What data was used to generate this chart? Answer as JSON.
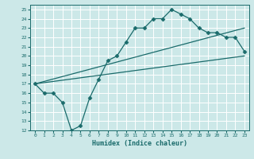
{
  "title": "",
  "xlabel": "Humidex (Indice chaleur)",
  "ylabel": "",
  "bg_color": "#cce8e8",
  "grid_color": "#ffffff",
  "line_color": "#1a6b6b",
  "ylim": [
    12,
    25.5
  ],
  "xlim": [
    -0.5,
    23.5
  ],
  "yticks": [
    12,
    13,
    14,
    15,
    16,
    17,
    18,
    19,
    20,
    21,
    22,
    23,
    24,
    25
  ],
  "xticks": [
    0,
    1,
    2,
    3,
    4,
    5,
    6,
    7,
    8,
    9,
    10,
    11,
    12,
    13,
    14,
    15,
    16,
    17,
    18,
    19,
    20,
    21,
    22,
    23
  ],
  "line1_x": [
    0,
    1,
    2,
    3,
    4,
    5,
    6,
    7,
    8,
    9,
    10,
    11,
    12,
    13,
    14,
    15,
    16,
    17,
    18,
    19,
    20,
    21,
    22,
    23
  ],
  "line1_y": [
    17,
    16,
    16,
    15,
    12,
    12.5,
    15.5,
    17.5,
    19.5,
    20,
    21.5,
    23,
    23,
    24,
    24,
    25,
    24.5,
    24,
    23,
    22.5,
    22.5,
    22,
    22,
    20.5
  ],
  "line2_x": [
    0,
    23
  ],
  "line2_y": [
    17,
    20
  ],
  "line3_x": [
    0,
    23
  ],
  "line3_y": [
    17,
    23
  ],
  "marker": "D",
  "markersize": 2.5,
  "linewidth": 0.9
}
